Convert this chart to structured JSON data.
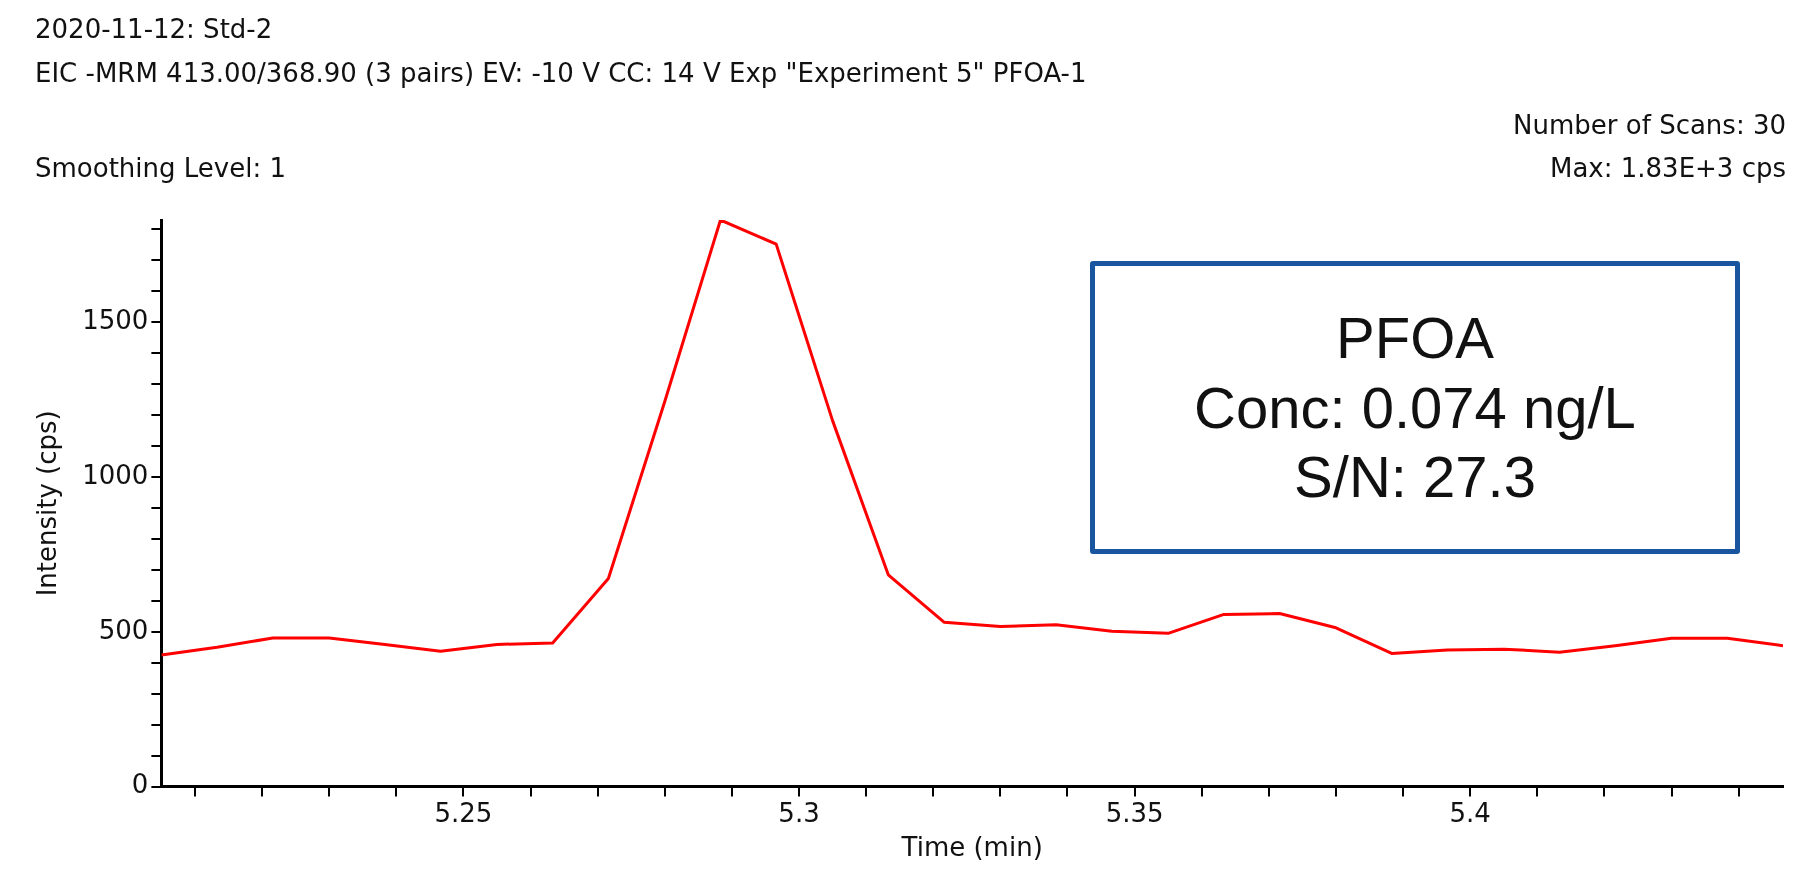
{
  "chart_data": {
    "type": "line",
    "title": "2020-11-12: Std-2",
    "subtitle": "EIC -MRM 413.00/368.90 (3 pairs) EV: -10 V CC: 14 V Exp \"Experiment 5\" PFOA-1",
    "xlabel": "Time (min)",
    "ylabel": "Intensity (cps)",
    "annotations": [
      "Number of Scans: 30",
      "Smoothing Level: 1",
      "Max: 1.83E+3 cps",
      "PFOA",
      "Conc: 0.074 ng/L",
      "S/N: 27.3"
    ],
    "x": [
      5.205,
      5.2133,
      5.2216,
      5.23,
      5.2383,
      5.2466,
      5.255,
      5.2633,
      5.2716,
      5.28,
      5.2883,
      5.2966,
      5.305,
      5.3133,
      5.3216,
      5.33,
      5.3383,
      5.3466,
      5.355,
      5.3633,
      5.3716,
      5.38,
      5.3883,
      5.3966,
      5.405,
      5.4133,
      5.4216,
      5.43,
      5.4383,
      5.4466
    ],
    "series": [
      {
        "color": "#ff0000",
        "values": [
          425,
          450,
          480,
          480,
          459,
          437,
          459,
          464,
          672,
          1244,
          1830,
          1752,
          1182,
          684,
          531,
          517,
          523,
          502,
          495,
          556,
          559,
          513,
          430,
          441,
          444,
          434,
          455,
          479,
          479,
          455
        ]
      }
    ],
    "xlim": [
      5.205,
      5.4466
    ],
    "ylim": [
      0,
      1830
    ],
    "xticks": [
      {
        "value": 5.21,
        "label": null
      },
      {
        "value": 5.22,
        "label": null
      },
      {
        "value": 5.23,
        "label": null
      },
      {
        "value": 5.24,
        "label": null
      },
      5.25,
      {
        "value": 5.26,
        "label": null
      },
      {
        "value": 5.27,
        "label": null
      },
      {
        "value": 5.28,
        "label": null
      },
      {
        "value": 5.29,
        "label": null
      },
      5.3,
      {
        "value": 5.31,
        "label": null
      },
      {
        "value": 5.32,
        "label": null
      },
      {
        "value": 5.33,
        "label": null
      },
      {
        "value": 5.34,
        "label": null
      },
      5.35,
      {
        "value": 5.36,
        "label": null
      },
      {
        "value": 5.37,
        "label": null
      },
      {
        "value": 5.38,
        "label": null
      },
      {
        "value": 5.39,
        "label": null
      },
      5.4,
      {
        "value": 5.41,
        "label": null
      },
      {
        "value": 5.42,
        "label": null
      },
      {
        "value": 5.43,
        "label": null
      },
      {
        "value": 5.44,
        "label": null
      }
    ],
    "yticks": [
      0,
      {
        "value": 100,
        "label": null
      },
      {
        "value": 200,
        "label": null
      },
      {
        "value": 300,
        "label": null
      },
      {
        "value": 400,
        "label": null
      },
      500,
      {
        "value": 600,
        "label": null
      },
      {
        "value": 700,
        "label": null
      },
      {
        "value": 800,
        "label": null
      },
      {
        "value": 900,
        "label": null
      },
      1000,
      {
        "value": 1100,
        "label": null
      },
      {
        "value": 1200,
        "label": null
      },
      {
        "value": 1300,
        "label": null
      },
      {
        "value": 1400,
        "label": null
      },
      1500,
      {
        "value": 1600,
        "label": null
      },
      {
        "value": 1700,
        "label": null
      },
      {
        "value": 1800,
        "label": null
      }
    ],
    "grid": false,
    "legend": false,
    "marker": "none",
    "line_style": "solid"
  }
}
